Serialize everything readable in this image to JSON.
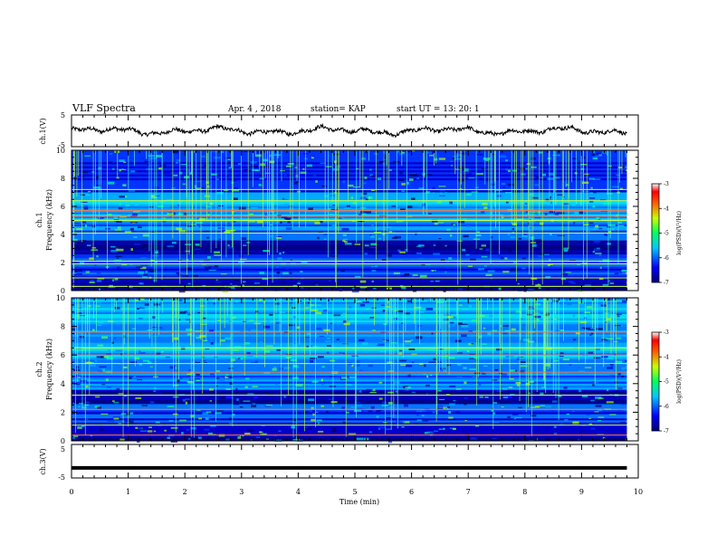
{
  "header": {
    "title": "VLF Spectra",
    "date": "Apr. 4 , 2018",
    "station": "station= KAP",
    "start_time": "start UT = 13: 20: 1"
  },
  "chart_data": [
    {
      "id": "ch1-waveform",
      "type": "line",
      "ylabel": "ch.1(V)",
      "ylim": [
        -5,
        5
      ],
      "yticks": [
        "5",
        "-5"
      ],
      "xlim": [
        0,
        10
      ],
      "series": [
        {
          "values_approx": "noisy waveform, mean about 0 V, amplitude roughly ±1.5 V, spanning 0 to 9.8 min"
        }
      ]
    },
    {
      "id": "ch1-spectrogram",
      "type": "heatmap",
      "title": "ch.1",
      "ylabel": "Frequency (kHz)",
      "ylim": [
        0,
        10
      ],
      "yticks": [
        "0",
        "2",
        "4",
        "6",
        "8",
        "10"
      ],
      "xlim": [
        0,
        10
      ],
      "data_extent_min": 9.8,
      "bands_khz": [
        0.3,
        0.9,
        1.9,
        2.1,
        4.1,
        5.0,
        5.3,
        5.7,
        6.4,
        7.2
      ],
      "colorbar": {
        "label": "log(PSD)(V²/Hz)",
        "range": [
          -7,
          -3
        ],
        "ticks": [
          "-3",
          "-4",
          "-5",
          "-6",
          "-7"
        ]
      }
    },
    {
      "id": "ch2-spectrogram",
      "type": "heatmap",
      "title": "ch.2",
      "ylabel": "Frequency (kHz)",
      "ylim": [
        0,
        10
      ],
      "yticks": [
        "0",
        "2",
        "4",
        "6",
        "8",
        "10"
      ],
      "xlim": [
        0,
        10
      ],
      "data_extent_min": 9.8,
      "bands_khz": [
        0.4,
        1.1,
        2.2,
        3.2,
        4.8,
        5.4,
        6.0,
        6.5,
        7.6
      ],
      "colorbar": {
        "label": "log(PSD)(V²/Hz)",
        "range": [
          -7,
          -3
        ],
        "ticks": [
          "-3",
          "-4",
          "-5",
          "-6",
          "-7"
        ]
      }
    },
    {
      "id": "ch3-waveform",
      "type": "line",
      "ylabel": "ch.3(V)",
      "ylim": [
        -5,
        5
      ],
      "yticks": [
        "5",
        "-5"
      ],
      "xlim": [
        0,
        10
      ],
      "xlabel": "Time (min)",
      "xticks": [
        "0",
        "1",
        "2",
        "3",
        "4",
        "5",
        "6",
        "7",
        "8",
        "9",
        "10"
      ],
      "series": [
        {
          "values_approx": "flat line at about -2 V spanning 0 to 9.8 min"
        }
      ]
    }
  ]
}
